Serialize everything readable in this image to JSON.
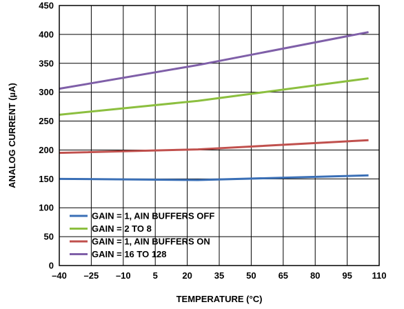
{
  "chart_data": {
    "type": "line",
    "xlabel": "TEMPERATURE (°C)",
    "ylabel": "ANALOG CURRENT (µA)",
    "xlim": [
      -40,
      110
    ],
    "ylim": [
      0,
      450
    ],
    "xticks": [
      -40,
      -25,
      -10,
      5,
      20,
      35,
      50,
      65,
      80,
      95,
      110
    ],
    "xtick_labels": [
      "–40",
      "–25",
      "–10",
      "5",
      "20",
      "35",
      "50",
      "65",
      "80",
      "95",
      "110"
    ],
    "yticks": [
      0,
      50,
      100,
      150,
      200,
      250,
      300,
      350,
      400,
      450
    ],
    "ytick_labels": [
      "0",
      "50",
      "100",
      "150",
      "200",
      "250",
      "300",
      "350",
      "400",
      "450"
    ],
    "grid": true,
    "legend_position": "bottom-left",
    "series": [
      {
        "name": "GAIN = 1, AIN BUFFERS OFF",
        "color": "#3a6fb6",
        "x": [
          -40,
          25,
          105
        ],
        "y": [
          150,
          148,
          156
        ]
      },
      {
        "name": "GAIN = 2 TO 8",
        "color": "#8cbf3f",
        "x": [
          -40,
          25,
          105
        ],
        "y": [
          261,
          285,
          324
        ]
      },
      {
        "name": "GAIN = 1, AIN BUFFERS ON",
        "color": "#c0504d",
        "x": [
          -40,
          25,
          105
        ],
        "y": [
          195,
          201,
          217
        ]
      },
      {
        "name": "GAIN = 16 TO 128",
        "color": "#7f5fa8",
        "x": [
          -40,
          25,
          105
        ],
        "y": [
          306,
          347,
          404
        ]
      }
    ]
  }
}
